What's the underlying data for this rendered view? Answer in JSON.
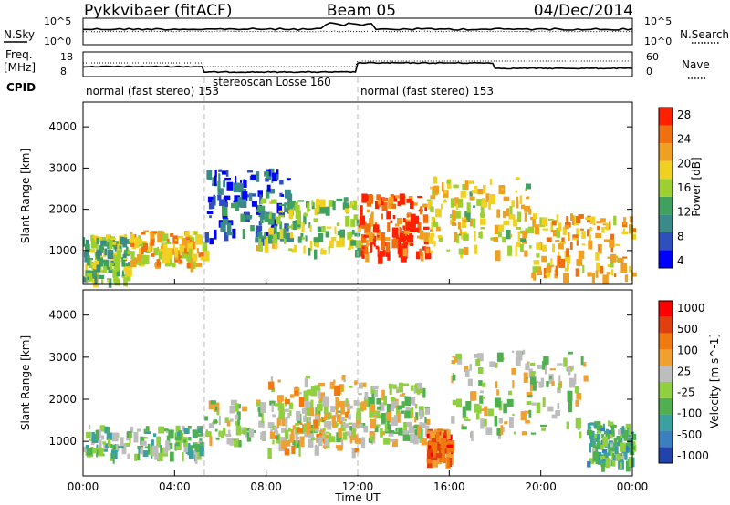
{
  "header": {
    "station": "Pykkvibaer (fitACF)",
    "beam": "Beam 05",
    "date": "04/Dec/2014"
  },
  "noise_panel": {
    "left_label": "N.Sky",
    "right_label": "N.Search",
    "left_ticks": [
      "10^5",
      "10^0"
    ],
    "right_ticks": [
      "10^5",
      "10^0"
    ]
  },
  "freq_panel": {
    "left_label_1": "Freq.",
    "left_label_2": "[MHz]",
    "left_ticks": [
      "18",
      "8"
    ],
    "right_label": "Nave",
    "right_ticks": [
      "60",
      "0"
    ],
    "cpid_label": "CPID"
  },
  "cpid_segments": [
    {
      "label": "normal (fast stereo) 153",
      "start_h": 0.0,
      "end_h": 5.3
    },
    {
      "label": "stereoscan Losse 160",
      "start_h": 5.3,
      "end_h": 12.0
    },
    {
      "label": "normal (fast stereo) 153",
      "start_h": 12.0,
      "end_h": 24.0
    }
  ],
  "x_axis": {
    "label": "Time UT",
    "ticks": [
      "00:00",
      "04:00",
      "08:00",
      "12:00",
      "16:00",
      "20:00",
      "00:00"
    ],
    "range_h": [
      0,
      24
    ]
  },
  "power_panel": {
    "ylabel": "Slant Range [km]",
    "yticks": [
      "4000",
      "3000",
      "2000",
      "1000"
    ],
    "colorbar_label": "Power [dB]",
    "colorbar_ticks": [
      "28",
      "24",
      "20",
      "16",
      "12",
      "8",
      "4"
    ]
  },
  "velocity_panel": {
    "ylabel": "Slant Range [km]",
    "yticks": [
      "4000",
      "3000",
      "2000",
      "1000"
    ],
    "colorbar_label": "Velocity [m s^-1]",
    "colorbar_ticks": [
      "1000",
      "500",
      "100",
      "25",
      "-25",
      "-100",
      "-500",
      "-1000"
    ]
  },
  "chart_data": [
    {
      "type": "heatmap",
      "title": "Pykkvibaer (fitACF) Beam 05 04/Dec/2014",
      "xlabel": "Time UT",
      "ylabel": "Slant Range [km]",
      "xlim": [
        0,
        24
      ],
      "ylim": [
        180,
        4600
      ],
      "colorbar": {
        "label": "Power [dB]",
        "range": [
          0,
          30
        ],
        "ticks": [
          4,
          8,
          12,
          16,
          20,
          24,
          28
        ]
      },
      "colors": [
        "#0000ff",
        "#2f4fbf",
        "#3a8a8a",
        "#40a060",
        "#9ccf30",
        "#f0d020",
        "#f0a020",
        "#f07010",
        "#ff2000"
      ],
      "regions": [
        {
          "t0": 0.0,
          "t1": 2.0,
          "r0": 300,
          "r1": 1400,
          "power": 14
        },
        {
          "t0": 2.0,
          "t1": 5.3,
          "r0": 700,
          "r1": 1500,
          "power": 20
        },
        {
          "t0": 5.3,
          "t1": 9.0,
          "r0": 1300,
          "r1": 3000,
          "power": 6
        },
        {
          "t0": 7.5,
          "t1": 12.0,
          "r0": 1000,
          "r1": 2300,
          "power": 15
        },
        {
          "t0": 12.0,
          "t1": 15.0,
          "r0": 900,
          "r1": 2400,
          "power": 26
        },
        {
          "t0": 15.0,
          "t1": 19.5,
          "r0": 1000,
          "r1": 2800,
          "power": 18
        },
        {
          "t0": 19.5,
          "t1": 24.0,
          "r0": 400,
          "r1": 1900,
          "power": 20
        }
      ]
    },
    {
      "type": "heatmap",
      "title": "Pykkvibaer (fitACF) Beam 05 04/Dec/2014",
      "xlabel": "Time UT",
      "ylabel": "Slant Range [km]",
      "xlim": [
        0,
        24
      ],
      "ylim": [
        180,
        4600
      ],
      "colorbar": {
        "label": "Velocity [m s^-1]",
        "range": [
          -1000,
          1000
        ],
        "ticks": [
          1000,
          500,
          100,
          25,
          -25,
          -100,
          -500,
          -1000
        ]
      },
      "colors": [
        "#2244aa",
        "#3a7fbf",
        "#3aa0a0",
        "#50b050",
        "#90d040",
        "#bdbdbd",
        "#f0a030",
        "#f07a10",
        "#e04010",
        "#ff0000"
      ],
      "regions": [
        {
          "t0": 0.0,
          "t1": 5.3,
          "r0": 700,
          "r1": 1400,
          "velocity": -200
        },
        {
          "t0": 5.3,
          "t1": 12.0,
          "r0": 1000,
          "r1": 2000,
          "velocity": 0
        },
        {
          "t0": 8.0,
          "t1": 12.0,
          "r0": 800,
          "r1": 2600,
          "velocity": 150
        },
        {
          "t0": 12.0,
          "t1": 15.0,
          "r0": 1000,
          "r1": 2400,
          "velocity": 0
        },
        {
          "t0": 15.0,
          "t1": 16.0,
          "r0": 600,
          "r1": 1300,
          "velocity": 600
        },
        {
          "t0": 16.0,
          "t1": 22.0,
          "r0": 1200,
          "r1": 3200,
          "velocity": 0
        },
        {
          "t0": 22.0,
          "t1": 24.0,
          "r0": 500,
          "r1": 1500,
          "velocity": -300
        }
      ]
    }
  ]
}
